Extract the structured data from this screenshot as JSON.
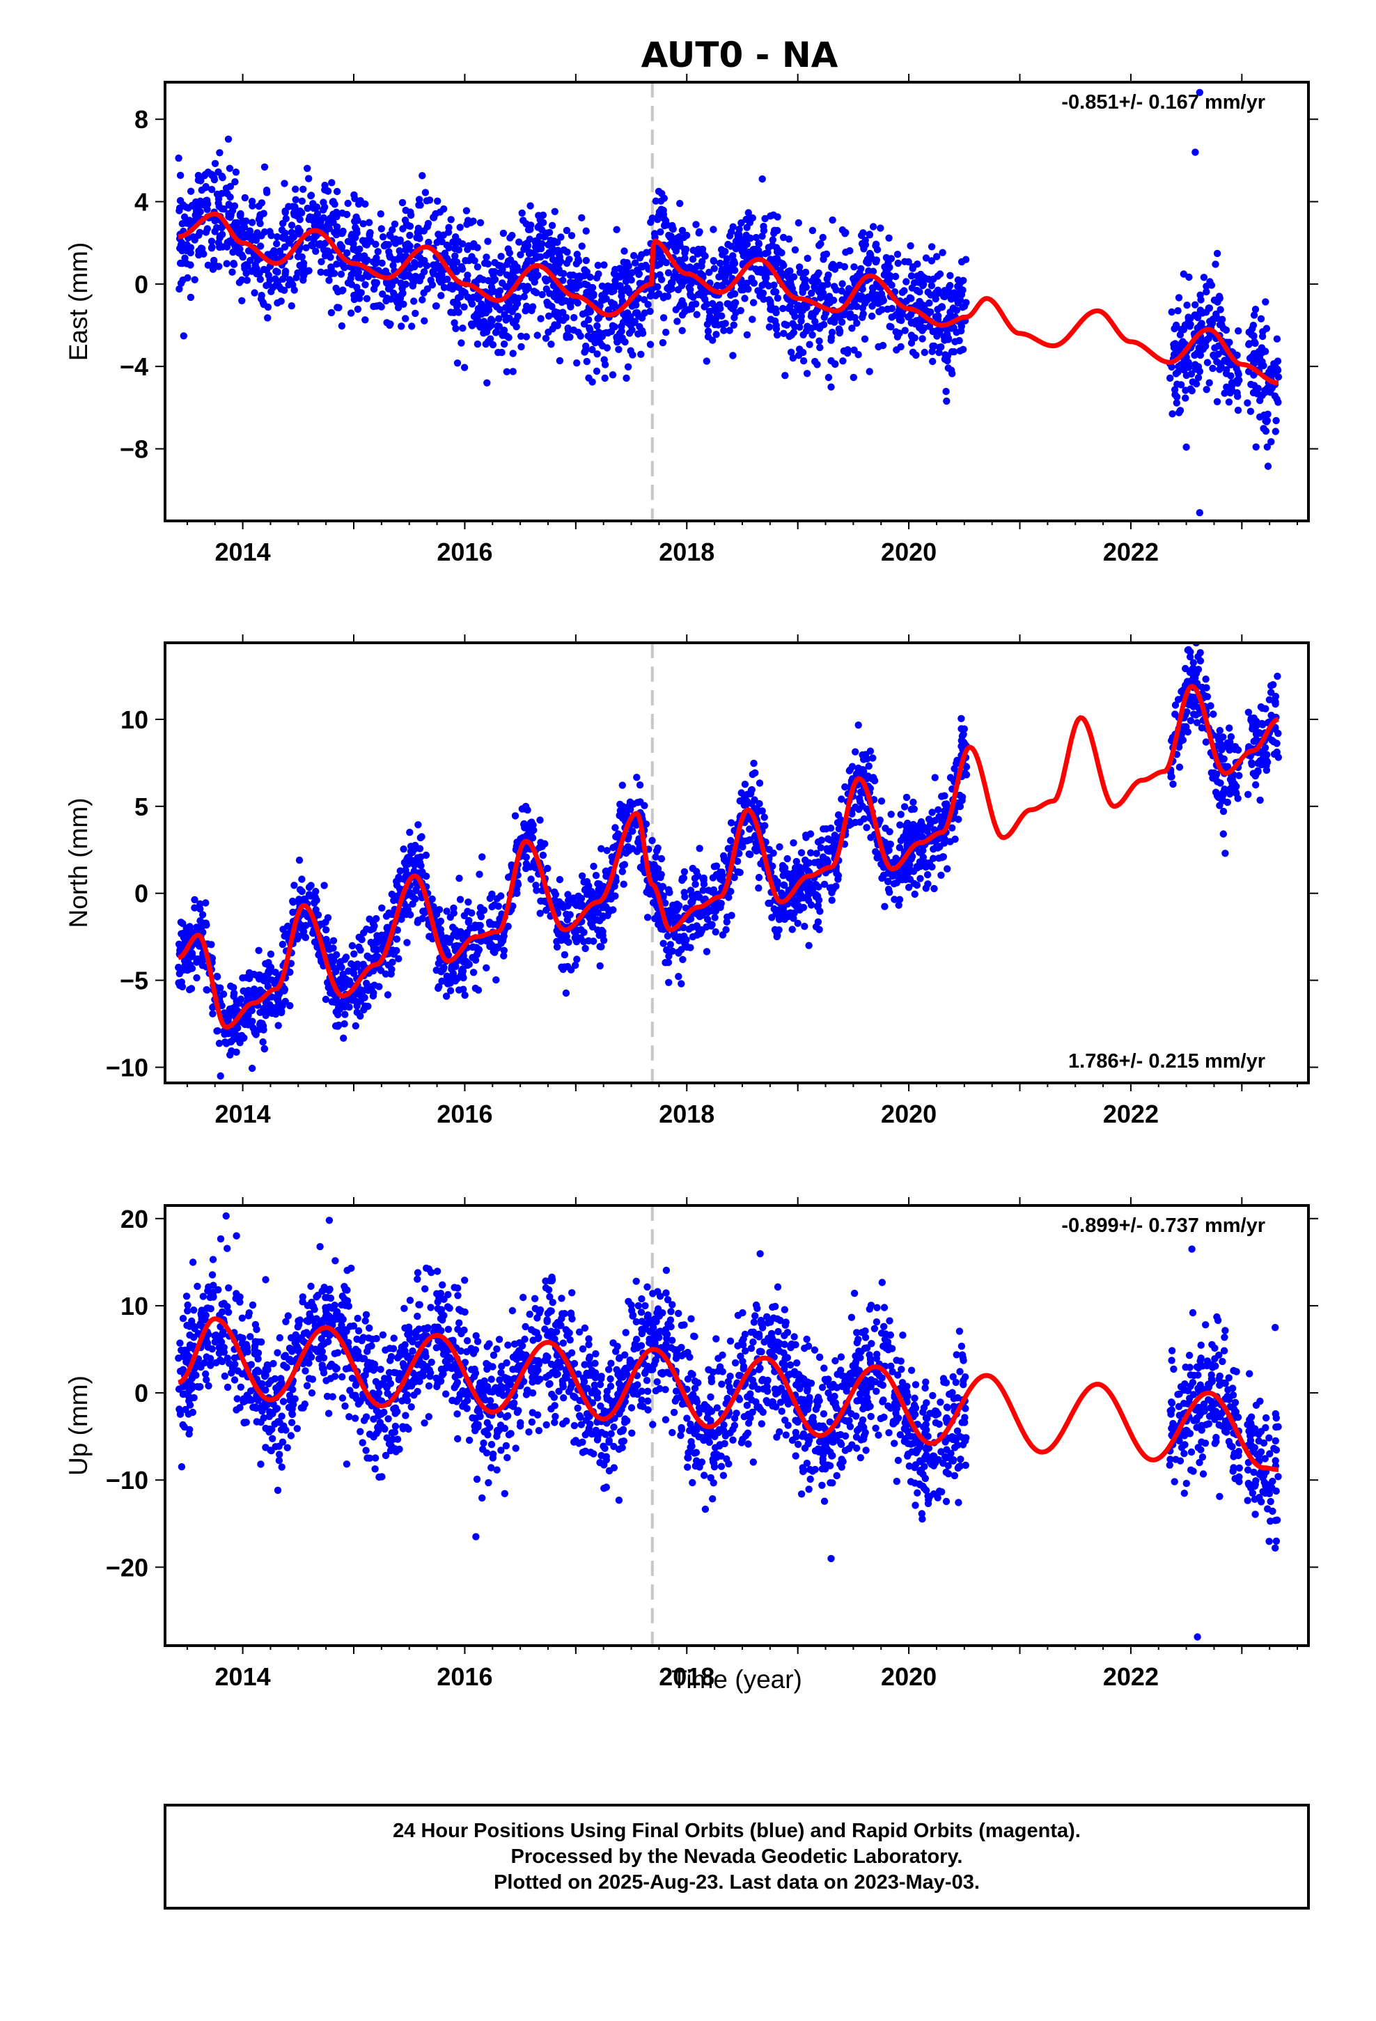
{
  "title": "AUT0 - NA",
  "x_axis_label": "Time (year)",
  "footer": {
    "line1": "24 Hour Positions Using Final Orbits (blue) and Rapid Orbits (magenta).",
    "line2": "Processed by the Nevada Geodetic Laboratory.",
    "line3": "Plotted on 2025-Aug-23. Last data on 2023-May-03."
  },
  "colors": {
    "points": "#0000ff",
    "model": "#ff0000",
    "event_line": "#c8c8c8",
    "frame": "#000000"
  },
  "chart_data": [
    {
      "type": "scatter",
      "name": "east",
      "title": "AUT0 - NA",
      "xlabel": "",
      "ylabel": "East (mm)",
      "xlim": [
        2013.3,
        2023.6
      ],
      "ylim": [
        -11.5,
        9.8
      ],
      "xticks": [
        2014,
        2016,
        2018,
        2020,
        2022
      ],
      "yticks": [
        8,
        4,
        0,
        -4,
        -8
      ],
      "ytick_labels": [
        "8",
        "4",
        "0",
        "−4",
        "−8"
      ],
      "rate_label": "-0.851+/- 0.167 mm/yr",
      "rate_label_position": "top-right",
      "event_line_x": 2017.69,
      "data_segments": [
        [
          2013.42,
          2017.69
        ],
        [
          2017.69,
          2020.52
        ],
        [
          2022.35,
          2022.98
        ],
        [
          2023.05,
          2023.33
        ]
      ],
      "model": {
        "x": [
          2013.42,
          2013.75,
          2014.0,
          2014.3,
          2014.65,
          2015.0,
          2015.3,
          2015.65,
          2016.0,
          2016.3,
          2016.65,
          2017.0,
          2017.3,
          2017.69,
          2017.7,
          2018.0,
          2018.3,
          2018.65,
          2019.0,
          2019.35,
          2019.65,
          2020.0,
          2020.3,
          2020.52,
          2020.7,
          2021.0,
          2021.3,
          2021.7,
          2022.0,
          2022.35,
          2022.7,
          2023.0,
          2023.33
        ],
        "y": [
          2.3,
          3.4,
          2.0,
          1.0,
          2.6,
          1.0,
          0.3,
          1.8,
          0.0,
          -0.8,
          0.9,
          -0.6,
          -1.5,
          0.0,
          2.1,
          0.5,
          -0.4,
          1.2,
          -0.7,
          -1.3,
          0.4,
          -1.2,
          -2.0,
          -1.6,
          -0.7,
          -2.4,
          -3.0,
          -1.3,
          -2.8,
          -3.8,
          -2.2,
          -3.9,
          -4.8
        ]
      },
      "scatter_spread": 1.4,
      "outliers": [
        [
          2022.62,
          9.3
        ],
        [
          2022.58,
          6.4
        ],
        [
          2022.62,
          -11.1
        ],
        [
          2017.69,
          3.2
        ],
        [
          2018.68,
          5.1
        ],
        [
          2016.2,
          -4.8
        ],
        [
          2019.3,
          -5.0
        ]
      ]
    },
    {
      "type": "scatter",
      "name": "north",
      "xlabel": "",
      "ylabel": "North (mm)",
      "xlim": [
        2013.3,
        2023.6
      ],
      "ylim": [
        -10.9,
        14.4
      ],
      "xticks": [
        2014,
        2016,
        2018,
        2020,
        2022
      ],
      "yticks": [
        10,
        5,
        0,
        -5,
        -10
      ],
      "ytick_labels": [
        "10",
        "5",
        "0",
        "−5",
        "−10"
      ],
      "rate_label": "1.786+/- 0.215 mm/yr",
      "rate_label_position": "bottom-right",
      "event_line_x": 2017.69,
      "data_segments": [
        [
          2013.42,
          2017.69
        ],
        [
          2017.69,
          2020.52
        ],
        [
          2022.35,
          2022.98
        ],
        [
          2023.05,
          2023.33
        ]
      ],
      "model": {
        "x": [
          2013.42,
          2013.6,
          2013.85,
          2014.1,
          2014.3,
          2014.55,
          2014.9,
          2015.2,
          2015.55,
          2015.85,
          2016.1,
          2016.3,
          2016.55,
          2016.9,
          2017.2,
          2017.55,
          2017.69,
          2017.85,
          2018.1,
          2018.3,
          2018.55,
          2018.85,
          2019.1,
          2019.3,
          2019.55,
          2019.85,
          2020.1,
          2020.3,
          2020.55,
          2020.85,
          2021.1,
          2021.3,
          2021.55,
          2021.85,
          2022.1,
          2022.3,
          2022.55,
          2022.85,
          2023.1,
          2023.33
        ],
        "y": [
          -3.7,
          -2.4,
          -7.7,
          -6.3,
          -5.5,
          -0.7,
          -5.9,
          -4.1,
          1.0,
          -3.9,
          -2.5,
          -2.2,
          3.0,
          -2.1,
          -0.5,
          4.6,
          0.5,
          -2.1,
          -0.8,
          -0.2,
          4.8,
          -0.5,
          1.0,
          1.5,
          6.6,
          1.4,
          2.9,
          3.5,
          8.4,
          3.2,
          4.8,
          5.3,
          10.1,
          5.0,
          6.5,
          7.0,
          11.9,
          6.9,
          8.2,
          10.0
        ]
      },
      "scatter_spread": 1.2,
      "outliers": [
        [
          2022.52,
          14.0
        ],
        [
          2013.8,
          -10.5
        ],
        [
          2022.85,
          2.3
        ],
        [
          2017.95,
          -5.2
        ],
        [
          2019.1,
          -3.0
        ]
      ]
    },
    {
      "type": "scatter",
      "name": "up",
      "xlabel": "Time (year)",
      "ylabel": "Up (mm)",
      "xlim": [
        2013.3,
        2023.6
      ],
      "ylim": [
        -29.0,
        21.5
      ],
      "xticks": [
        2014,
        2016,
        2018,
        2020,
        2022
      ],
      "yticks": [
        20,
        10,
        0,
        -10,
        -20
      ],
      "ytick_labels": [
        "20",
        "10",
        "0",
        "−10",
        "−20"
      ],
      "rate_label": "-0.899+/- 0.737 mm/yr",
      "rate_label_position": "top-right",
      "event_line_x": 2017.69,
      "data_segments": [
        [
          2013.42,
          2017.69
        ],
        [
          2017.69,
          2020.52
        ],
        [
          2022.35,
          2022.98
        ],
        [
          2023.05,
          2023.33
        ]
      ],
      "model": {
        "x": [
          2013.42,
          2013.75,
          2014.25,
          2014.75,
          2015.25,
          2015.75,
          2016.25,
          2016.75,
          2017.25,
          2017.7,
          2018.2,
          2018.7,
          2019.2,
          2019.7,
          2020.2,
          2020.7,
          2021.2,
          2021.7,
          2022.2,
          2022.7,
          2023.2,
          2023.33
        ],
        "y": [
          1.2,
          8.5,
          -0.8,
          7.5,
          -1.5,
          6.6,
          -2.2,
          5.8,
          -3.0,
          5.0,
          -3.9,
          4.0,
          -4.9,
          3.0,
          -5.8,
          2.0,
          -6.8,
          1.0,
          -7.7,
          0.0,
          -8.6,
          -8.8
        ]
      },
      "scatter_spread": 3.8,
      "outliers": [
        [
          2013.85,
          20.3
        ],
        [
          2014.78,
          19.8
        ],
        [
          2022.6,
          -28.0
        ],
        [
          2016.1,
          -16.5
        ],
        [
          2019.3,
          -19.0
        ],
        [
          2023.3,
          -17.8
        ],
        [
          2022.55,
          16.5
        ]
      ]
    }
  ]
}
